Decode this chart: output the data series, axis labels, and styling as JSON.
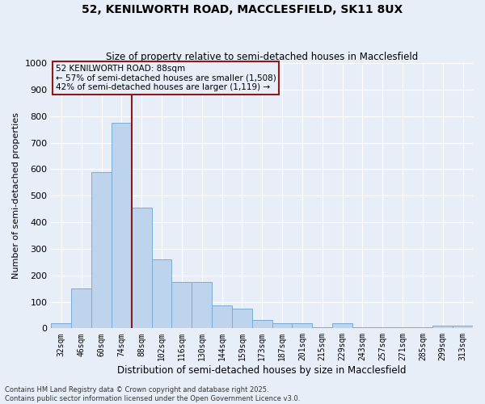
{
  "title": "52, KENILWORTH ROAD, MACCLESFIELD, SK11 8UX",
  "subtitle": "Size of property relative to semi-detached houses in Macclesfield",
  "xlabel": "Distribution of semi-detached houses by size in Macclesfield",
  "ylabel": "Number of semi-detached properties",
  "categories": [
    "32sqm",
    "46sqm",
    "60sqm",
    "74sqm",
    "88sqm",
    "102sqm",
    "116sqm",
    "130sqm",
    "144sqm",
    "159sqm",
    "173sqm",
    "187sqm",
    "201sqm",
    "215sqm",
    "229sqm",
    "243sqm",
    "257sqm",
    "271sqm",
    "285sqm",
    "299sqm",
    "313sqm"
  ],
  "values": [
    20,
    150,
    590,
    775,
    455,
    260,
    175,
    175,
    85,
    75,
    30,
    20,
    20,
    5,
    20,
    5,
    5,
    5,
    5,
    10,
    10
  ],
  "bar_color": "#bdd4ec",
  "bar_edge_color": "#7aadd4",
  "vline_color": "#8b1a1a",
  "vline_x": 3.5,
  "annotation_title": "52 KENILWORTH ROAD: 88sqm",
  "annotation_line1": "← 57% of semi-detached houses are smaller (1,508)",
  "annotation_line2": "42% of semi-detached houses are larger (1,119) →",
  "annotation_box_color": "#8b1a1a",
  "ylim": [
    0,
    1000
  ],
  "yticks": [
    0,
    100,
    200,
    300,
    400,
    500,
    600,
    700,
    800,
    900,
    1000
  ],
  "background_color": "#e8eef8",
  "grid_color": "#ffffff",
  "footer1": "Contains HM Land Registry data © Crown copyright and database right 2025.",
  "footer2": "Contains public sector information licensed under the Open Government Licence v3.0."
}
